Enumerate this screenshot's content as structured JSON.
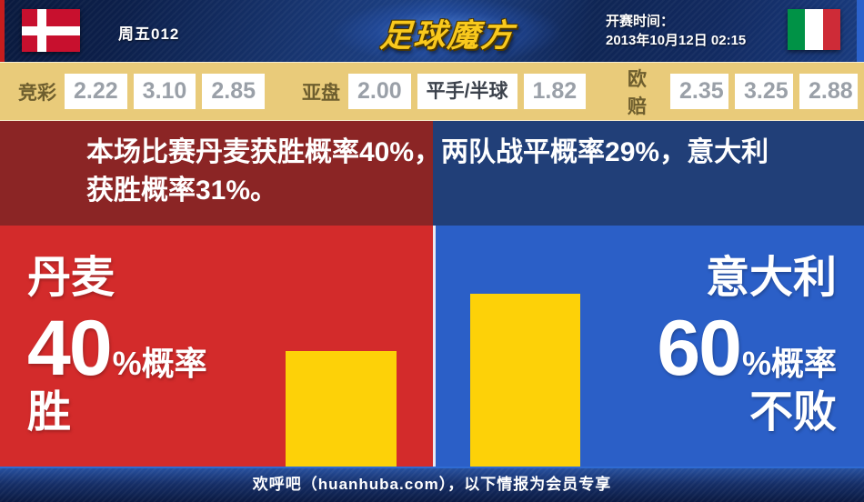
{
  "header": {
    "home_flag": "denmark",
    "match_code": "周五012",
    "logo_text": "足球魔方",
    "kickoff_label": "开赛时间：",
    "kickoff_datetime": "2013年10月12日 02:15",
    "away_flag": "italy"
  },
  "odds_bar": {
    "jingcai": {
      "label": "竞彩",
      "values": [
        "2.22",
        "3.10",
        "2.85"
      ]
    },
    "yapan": {
      "label": "亚盘",
      "values": [
        "2.00",
        "平手/半球",
        "1.82"
      ]
    },
    "oupei": {
      "label": "欧赔",
      "values": [
        "2.35",
        "3.25",
        "2.88"
      ]
    }
  },
  "announcement": {
    "line1": "本场比赛丹麦获胜概率40%，两队战平概率29%，意大利",
    "line2": "获胜概率31%。",
    "full_text": "本场比赛丹麦获胜概率40%，两队战平概率29%，意大利获胜概率31%。"
  },
  "prediction": {
    "home": {
      "team": "丹麦",
      "percent": "40",
      "percent_suffix": "%概率",
      "outcome": "胜",
      "bar_height_pct": 40
    },
    "away": {
      "team": "意大利",
      "percent": "60",
      "percent_suffix": "%概率",
      "outcome": "不败",
      "bar_height_pct": 60
    }
  },
  "footer": {
    "text": "欢呼吧（huanhuba.com），以下情报为会员专享"
  },
  "colors": {
    "header_navy": "#122a60",
    "odds_bar_bg": "#e9cb7a",
    "announce_red": "#8b2525",
    "announce_navy": "#213f78",
    "main_red": "#d32b2b",
    "main_blue": "#2b5fc7",
    "bar_yellow": "#fdd108",
    "logo_gold": "#f9c91d",
    "edge_red": "#c61d1d",
    "edge_blue": "#2b62cc"
  }
}
